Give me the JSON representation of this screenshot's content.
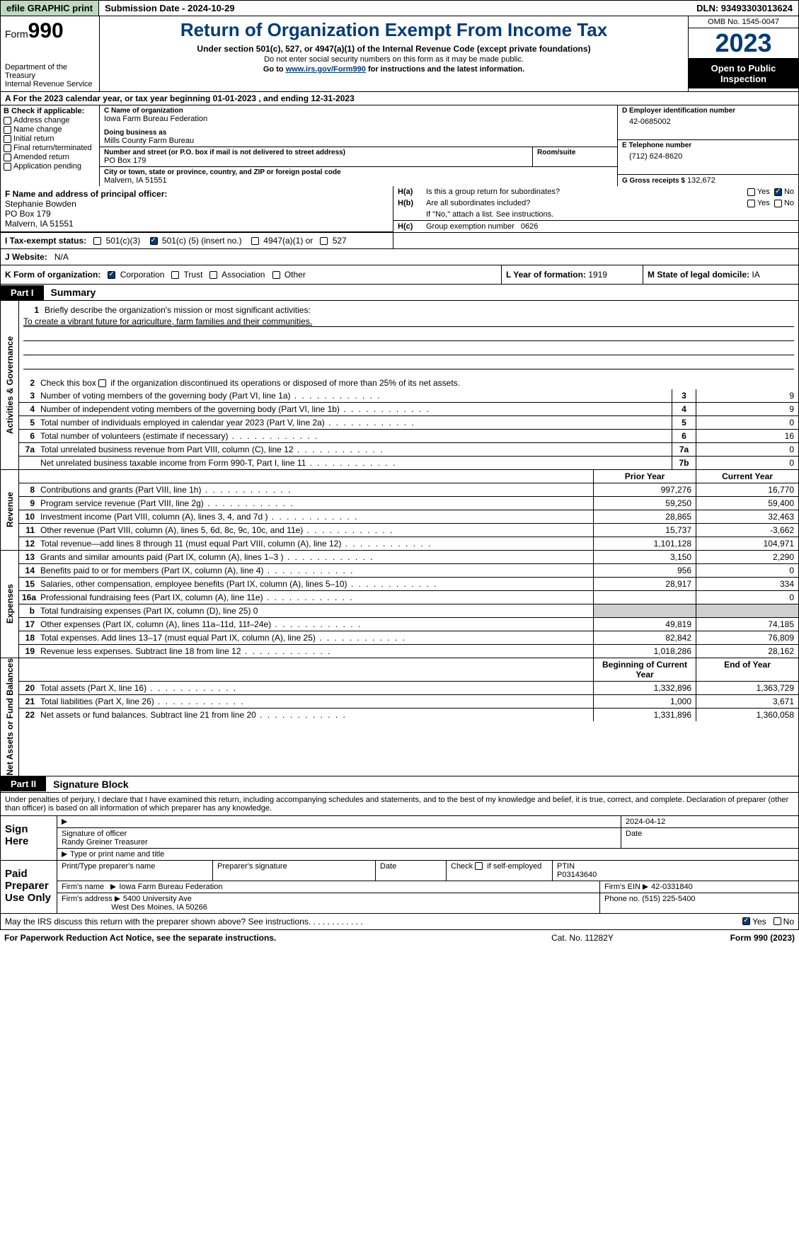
{
  "topbar": {
    "efile_label": "efile GRAPHIC print",
    "submission_label": "Submission Date - 2024-10-29",
    "dln_label": "DLN: 93493303013624"
  },
  "header": {
    "form_prefix": "Form",
    "form_number": "990",
    "title": "Return of Organization Exempt From Income Tax",
    "subtitle1": "Under section 501(c), 527, or 4947(a)(1) of the Internal Revenue Code (except private foundations)",
    "subtitle2": "Do not enter social security numbers on this form as it may be made public.",
    "subtitle3_pre": "Go to ",
    "subtitle3_link": "www.irs.gov/Form990",
    "subtitle3_post": " for instructions and the latest information.",
    "dept": "Department of the Treasury\nInternal Revenue Service",
    "omb": "OMB No. 1545-0047",
    "year": "2023",
    "open": "Open to Public Inspection"
  },
  "line_a": "A  For the 2023 calendar year, or tax year beginning 01-01-2023    , and ending 12-31-2023",
  "b": {
    "lbl": "B Check if applicable:",
    "items": [
      "Address change",
      "Name change",
      "Initial return",
      "Final return/terminated",
      "Amended return",
      "Application pending"
    ]
  },
  "c": {
    "name_lbl": "C Name of organization",
    "name": "Iowa Farm Bureau Federation",
    "dba_lbl": "Doing business as",
    "dba": "Mills County Farm Bureau",
    "street_lbl": "Number and street (or P.O. box if mail is not delivered to street address)",
    "street": "PO Box 179",
    "room_lbl": "Room/suite",
    "city_lbl": "City or town, state or province, country, and ZIP or foreign postal code",
    "city": "Malvern, IA  51551"
  },
  "d": {
    "lbl": "D Employer identification number",
    "val": "42-0685002"
  },
  "e": {
    "lbl": "E Telephone number",
    "val": "(712) 624-8620"
  },
  "g": {
    "lbl": "G Gross receipts $",
    "val": "132,672"
  },
  "f": {
    "lbl": "F  Name and address of principal officer:",
    "name": "Stephanie Bowden",
    "l1": "PO Box 179",
    "l2": "Malvern, IA  51551"
  },
  "h": {
    "ha_q": "Is this a group return for subordinates?",
    "ha_lbl": "H(a)",
    "hb_lbl": "H(b)",
    "hb_q": "Are all subordinates included?",
    "hb_note": "If \"No,\" attach a list. See instructions.",
    "hc_lbl": "H(c)",
    "hc_q": "Group exemption number",
    "hc_val": "0626",
    "yes": "Yes",
    "no": "No"
  },
  "i": {
    "lbl": "I   Tax-exempt status:",
    "opt1": "501(c)(3)",
    "opt2_pre": "501(c) (",
    "opt2_val": "5",
    "opt2_post": ") (insert no.)",
    "opt3": "4947(a)(1) or",
    "opt4": "527"
  },
  "j": {
    "lbl": "J   Website:",
    "val": "N/A"
  },
  "k": {
    "lbl": "K Form of organization:",
    "opts": [
      "Corporation",
      "Trust",
      "Association",
      "Other"
    ],
    "l_lbl": "L Year of formation:",
    "l_val": "1919",
    "m_lbl": "M State of legal domicile:",
    "m_val": "IA"
  },
  "part1": {
    "tag": "Part I",
    "title": "Summary"
  },
  "activities": {
    "vert": "Activities & Governance",
    "l1_lbl": "Briefly describe the organization's mission or most significant activities:",
    "l1_val": "To create a vibrant future for agriculture, farm families and their communities.",
    "l2": "Check this box           if the organization discontinued its operations or disposed of more than 25% of its net assets.",
    "rows": [
      {
        "n": "3",
        "t": "Number of voting members of the governing body (Part VI, line 1a)",
        "box": "3",
        "v": "9"
      },
      {
        "n": "4",
        "t": "Number of independent voting members of the governing body (Part VI, line 1b)",
        "box": "4",
        "v": "9"
      },
      {
        "n": "5",
        "t": "Total number of individuals employed in calendar year 2023 (Part V, line 2a)",
        "box": "5",
        "v": "0"
      },
      {
        "n": "6",
        "t": "Total number of volunteers (estimate if necessary)",
        "box": "6",
        "v": "16"
      },
      {
        "n": "7a",
        "t": "Total unrelated business revenue from Part VIII, column (C), line 12",
        "box": "7a",
        "v": "0"
      },
      {
        "n": "",
        "t": "Net unrelated business taxable income from Form 990-T, Part I, line 11",
        "box": "7b",
        "v": "0"
      }
    ]
  },
  "revenue": {
    "vert": "Revenue",
    "hdr_prior": "Prior Year",
    "hdr_curr": "Current Year",
    "rows": [
      {
        "n": "8",
        "t": "Contributions and grants (Part VIII, line 1h)",
        "p": "997,276",
        "c": "16,770"
      },
      {
        "n": "9",
        "t": "Program service revenue (Part VIII, line 2g)",
        "p": "59,250",
        "c": "59,400"
      },
      {
        "n": "10",
        "t": "Investment income (Part VIII, column (A), lines 3, 4, and 7d )",
        "p": "28,865",
        "c": "32,463"
      },
      {
        "n": "11",
        "t": "Other revenue (Part VIII, column (A), lines 5, 6d, 8c, 9c, 10c, and 11e)",
        "p": "15,737",
        "c": "-3,662"
      },
      {
        "n": "12",
        "t": "Total revenue—add lines 8 through 11 (must equal Part VIII, column (A), line 12)",
        "p": "1,101,128",
        "c": "104,971"
      }
    ]
  },
  "expenses": {
    "vert": "Expenses",
    "rows": [
      {
        "n": "13",
        "t": "Grants and similar amounts paid (Part IX, column (A), lines 1–3 )",
        "p": "3,150",
        "c": "2,290"
      },
      {
        "n": "14",
        "t": "Benefits paid to or for members (Part IX, column (A), line 4)",
        "p": "956",
        "c": "0"
      },
      {
        "n": "15",
        "t": "Salaries, other compensation, employee benefits (Part IX, column (A), lines 5–10)",
        "p": "28,917",
        "c": "334"
      },
      {
        "n": "16a",
        "t": "Professional fundraising fees (Part IX, column (A), line 11e)",
        "p": "",
        "c": "0"
      },
      {
        "n": "b",
        "t": "Total fundraising expenses (Part IX, column (D), line 25) 0",
        "p": "grey",
        "c": "grey"
      },
      {
        "n": "17",
        "t": "Other expenses (Part IX, column (A), lines 11a–11d, 11f–24e)",
        "p": "49,819",
        "c": "74,185"
      },
      {
        "n": "18",
        "t": "Total expenses. Add lines 13–17 (must equal Part IX, column (A), line 25)",
        "p": "82,842",
        "c": "76,809"
      },
      {
        "n": "19",
        "t": "Revenue less expenses. Subtract line 18 from line 12",
        "p": "1,018,286",
        "c": "28,162"
      }
    ]
  },
  "netassets": {
    "vert": "Net Assets or Fund Balances",
    "hdr_begin": "Beginning of Current Year",
    "hdr_end": "End of Year",
    "rows": [
      {
        "n": "20",
        "t": "Total assets (Part X, line 16)",
        "p": "1,332,896",
        "c": "1,363,729"
      },
      {
        "n": "21",
        "t": "Total liabilities (Part X, line 26)",
        "p": "1,000",
        "c": "3,671"
      },
      {
        "n": "22",
        "t": "Net assets or fund balances. Subtract line 21 from line 20",
        "p": "1,331,896",
        "c": "1,360,058"
      }
    ]
  },
  "part2": {
    "tag": "Part II",
    "title": "Signature Block"
  },
  "sig_text": "Under penalties of perjury, I declare that I have examined this return, including accompanying schedules and statements, and to the best of my knowledge and belief, it is true, correct, and complete. Declaration of preparer (other than officer) is based on all information of which preparer has any knowledge.",
  "sign": {
    "left": "Sign Here",
    "date": "2024-04-12",
    "sig_lbl": "Signature of officer",
    "officer": "Randy Greiner  Treasurer",
    "type_lbl": "Type or print name and title",
    "date_lbl": "Date"
  },
  "paid": {
    "left": "Paid Preparer Use Only",
    "r1": {
      "c1": "Print/Type preparer's name",
      "c2": "Preparer's signature",
      "c3": "Date",
      "c4_lbl": "Check          if self-employed",
      "c5_lbl": "PTIN",
      "c5": "P03143640"
    },
    "r2": {
      "lbl": "Firm's name",
      "val": "Iowa Farm Bureau Federation",
      "ein_lbl": "Firm's EIN",
      "ein": "42-0331840"
    },
    "r3": {
      "lbl": "Firm's address",
      "l1": "5400 University Ave",
      "l2": "West Des Moines, IA  50266",
      "ph_lbl": "Phone no.",
      "ph": "(515) 225-5400"
    }
  },
  "discuss": {
    "q": "May the IRS discuss this return with the preparer shown above? See instructions.",
    "yes": "Yes",
    "no": "No"
  },
  "footer": {
    "l": "For Paperwork Reduction Act Notice, see the separate instructions.",
    "m": "Cat. No. 11282Y",
    "r": "Form 990 (2023)"
  }
}
